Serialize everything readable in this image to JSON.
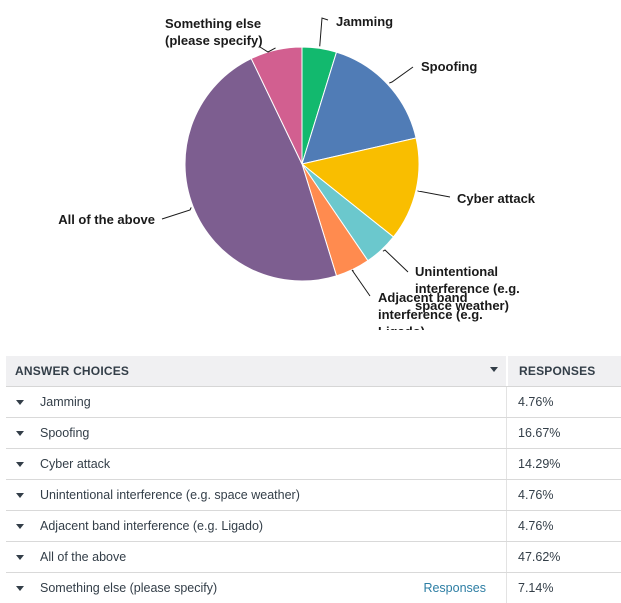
{
  "chart_data": {
    "type": "pie",
    "title": "",
    "categories": [
      "Jamming",
      "Spoofing",
      "Cyber attack",
      "Unintentional interference (e.g. space weather)",
      "Adjacent band interference (e.g. Ligado)",
      "All of the above",
      "Something else (please specify)"
    ],
    "values": [
      4.76,
      16.67,
      14.29,
      4.76,
      4.76,
      47.62,
      7.14
    ],
    "colors": [
      "#12b96e",
      "#507cb6",
      "#f9be00",
      "#6bc8cd",
      "#ff8b4f",
      "#7d5e90",
      "#d25f90"
    ],
    "labels": [
      [
        "Jamming"
      ],
      [
        "Spoofing"
      ],
      [
        "Cyber attack"
      ],
      [
        "Unintentional",
        "interference (e.g.",
        "space weather)"
      ],
      [
        "Adjacent band",
        "interference (e.g.",
        "Ligado)"
      ],
      [
        "All of the above"
      ],
      [
        "Something else",
        "(please specify)"
      ]
    ],
    "unit": "%"
  },
  "table": {
    "header_choice": "ANSWER CHOICES",
    "header_responses": "RESPONSES",
    "responses_link": "Responses",
    "rows": [
      {
        "choice": "Jamming",
        "pct": "4.76%"
      },
      {
        "choice": "Spoofing",
        "pct": "16.67%"
      },
      {
        "choice": "Cyber attack",
        "pct": "14.29%"
      },
      {
        "choice": "Unintentional interference (e.g. space weather)",
        "pct": "4.76%"
      },
      {
        "choice": "Adjacent band interference (e.g. Ligado)",
        "pct": "4.76%"
      },
      {
        "choice": "All of the above",
        "pct": "47.62%"
      },
      {
        "choice": "Something else (please specify)",
        "pct": "7.14%"
      }
    ]
  }
}
